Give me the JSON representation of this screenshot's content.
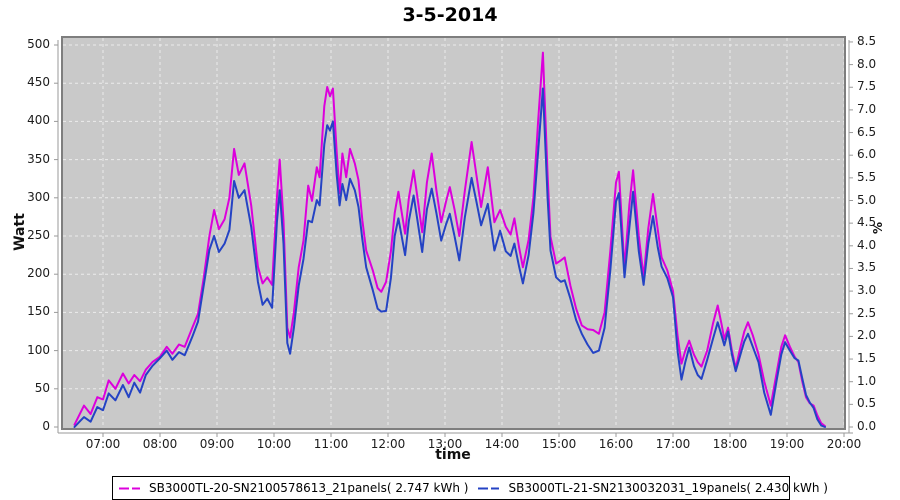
{
  "page": {
    "background": "#ffffff"
  },
  "chart_data": {
    "type": "line",
    "title": "3-5-2014",
    "xlabel": "time",
    "ylabel_left": "Watt",
    "ylabel_right": "%",
    "grid": true,
    "legend_position": "bottom",
    "plot_bg": "#c9c9c9",
    "grid_color": "#ececec",
    "frame_color": "#7e7e7e",
    "axis_color": "#9a9a9a",
    "xlim": [
      "06:17",
      "20:01"
    ],
    "ylim_left": [
      0,
      500
    ],
    "ylim_right": [
      0.0,
      8.5
    ],
    "x_ticks": [
      "07:00",
      "08:00",
      "09:00",
      "10:00",
      "11:00",
      "12:00",
      "13:00",
      "14:00",
      "15:00",
      "16:00",
      "17:00",
      "18:00",
      "19:00",
      "20:00"
    ],
    "y_left_ticks": [
      0,
      50,
      100,
      150,
      200,
      250,
      300,
      350,
      400,
      450,
      500
    ],
    "y_right_ticks": [
      "0.0",
      "0.5",
      "1.0",
      "1.5",
      "2.0",
      "2.5",
      "3.0",
      "3.5",
      "4.0",
      "4.5",
      "5.0",
      "5.5",
      "6.0",
      "6.5",
      "7.0",
      "7.5",
      "8.0",
      "8.5"
    ],
    "series": [
      {
        "name": "SB3000TL-20-SN2100578613_21panels( 2.747 kWh )",
        "color": "#dc00dc",
        "unit": "Watt",
        "energy_kwh": "2.747"
      },
      {
        "name": "SB3000TL-21-SN2130032031_19panels( 2.430 kWh )",
        "color": "#2443c4",
        "unit": "Watt",
        "energy_kwh": "2.430"
      }
    ],
    "points_format": [
      "time",
      "series1_watt",
      "series2_watt"
    ],
    "points": [
      [
        "06:30",
        3,
        0
      ],
      [
        "06:36",
        18,
        8
      ],
      [
        "06:40",
        28,
        13
      ],
      [
        "06:47",
        17,
        7
      ],
      [
        "06:54",
        39,
        26
      ],
      [
        "07:00",
        36,
        22
      ],
      [
        "07:06",
        61,
        44
      ],
      [
        "07:13",
        50,
        35
      ],
      [
        "07:21",
        70,
        55
      ],
      [
        "07:27",
        57,
        39
      ],
      [
        "07:33",
        68,
        58
      ],
      [
        "07:39",
        60,
        45
      ],
      [
        "07:45",
        75,
        68
      ],
      [
        "07:52",
        85,
        80
      ],
      [
        "08:00",
        92,
        90
      ],
      [
        "08:07",
        105,
        100
      ],
      [
        "08:13",
        96,
        88
      ],
      [
        "08:20",
        108,
        98
      ],
      [
        "08:26",
        105,
        94
      ],
      [
        "08:34",
        130,
        118
      ],
      [
        "08:40",
        148,
        138
      ],
      [
        "08:46",
        195,
        185
      ],
      [
        "08:52",
        250,
        232
      ],
      [
        "08:57",
        284,
        250
      ],
      [
        "09:02",
        259,
        229
      ],
      [
        "09:08",
        272,
        240
      ],
      [
        "09:13",
        300,
        258
      ],
      [
        "09:18",
        364,
        322
      ],
      [
        "09:23",
        330,
        300
      ],
      [
        "09:29",
        345,
        310
      ],
      [
        "09:36",
        290,
        262
      ],
      [
        "09:43",
        210,
        190
      ],
      [
        "09:48",
        188,
        160
      ],
      [
        "09:53",
        196,
        168
      ],
      [
        "09:58",
        186,
        156
      ],
      [
        "10:03",
        300,
        268
      ],
      [
        "10:06",
        350,
        310
      ],
      [
        "10:10",
        270,
        240
      ],
      [
        "10:14",
        130,
        110
      ],
      [
        "10:17",
        117,
        96
      ],
      [
        "10:21",
        150,
        130
      ],
      [
        "10:26",
        209,
        185
      ],
      [
        "10:31",
        244,
        220
      ],
      [
        "10:36",
        316,
        270
      ],
      [
        "10:40",
        296,
        268
      ],
      [
        "10:45",
        340,
        297
      ],
      [
        "10:48",
        327,
        290
      ],
      [
        "10:53",
        420,
        370
      ],
      [
        "10:56",
        445,
        395
      ],
      [
        "10:59",
        433,
        388
      ],
      [
        "11:02",
        443,
        400
      ],
      [
        "11:06",
        360,
        330
      ],
      [
        "11:09",
        306,
        290
      ],
      [
        "11:12",
        358,
        318
      ],
      [
        "11:16",
        327,
        297
      ],
      [
        "11:20",
        364,
        325
      ],
      [
        "11:25",
        345,
        310
      ],
      [
        "11:29",
        323,
        288
      ],
      [
        "11:33",
        270,
        245
      ],
      [
        "11:37",
        231,
        209
      ],
      [
        "11:44",
        205,
        179
      ],
      [
        "11:49",
        182,
        155
      ],
      [
        "11:53",
        177,
        151
      ],
      [
        "11:58",
        190,
        152
      ],
      [
        "12:03",
        230,
        195
      ],
      [
        "12:07",
        280,
        250
      ],
      [
        "12:11",
        308,
        273
      ],
      [
        "12:18",
        253,
        225
      ],
      [
        "12:22",
        300,
        270
      ],
      [
        "12:27",
        336,
        303
      ],
      [
        "12:31",
        300,
        270
      ],
      [
        "12:36",
        255,
        229
      ],
      [
        "12:41",
        320,
        285
      ],
      [
        "12:46",
        358,
        312
      ],
      [
        "12:51",
        310,
        280
      ],
      [
        "12:56",
        268,
        244
      ],
      [
        "13:01",
        295,
        265
      ],
      [
        "13:05",
        314,
        279
      ],
      [
        "13:10",
        285,
        250
      ],
      [
        "13:15",
        250,
        218
      ],
      [
        "13:21",
        310,
        275
      ],
      [
        "13:28",
        373,
        326
      ],
      [
        "13:33",
        330,
        295
      ],
      [
        "13:38",
        288,
        264
      ],
      [
        "13:45",
        340,
        292
      ],
      [
        "13:52",
        268,
        231
      ],
      [
        "13:58",
        284,
        257
      ],
      [
        "14:04",
        262,
        230
      ],
      [
        "14:09",
        252,
        224
      ],
      [
        "14:13",
        273,
        240
      ],
      [
        "14:18",
        235,
        210
      ],
      [
        "14:22",
        209,
        188
      ],
      [
        "14:28",
        245,
        225
      ],
      [
        "14:33",
        300,
        280
      ],
      [
        "14:38",
        400,
        360
      ],
      [
        "14:43",
        490,
        443
      ],
      [
        "14:48",
        330,
        300
      ],
      [
        "14:51",
        249,
        231
      ],
      [
        "14:57",
        214,
        196
      ],
      [
        "15:02",
        218,
        190
      ],
      [
        "15:06",
        222,
        192
      ],
      [
        "15:12",
        185,
        168
      ],
      [
        "15:18",
        155,
        140
      ],
      [
        "15:24",
        133,
        122
      ],
      [
        "15:30",
        128,
        108
      ],
      [
        "15:36",
        127,
        97
      ],
      [
        "15:42",
        122,
        100
      ],
      [
        "15:48",
        150,
        130
      ],
      [
        "15:54",
        230,
        205
      ],
      [
        "16:00",
        320,
        295
      ],
      [
        "16:03",
        334,
        306
      ],
      [
        "16:09",
        208,
        196
      ],
      [
        "16:14",
        290,
        260
      ],
      [
        "16:18",
        336,
        308
      ],
      [
        "16:24",
        250,
        230
      ],
      [
        "16:29",
        196,
        186
      ],
      [
        "16:34",
        260,
        240
      ],
      [
        "16:39",
        305,
        276
      ],
      [
        "16:44",
        258,
        235
      ],
      [
        "16:48",
        222,
        210
      ],
      [
        "16:54",
        205,
        195
      ],
      [
        "17:00",
        178,
        170
      ],
      [
        "17:05",
        118,
        98
      ],
      [
        "17:09",
        83,
        62
      ],
      [
        "17:13",
        100,
        85
      ],
      [
        "17:17",
        113,
        104
      ],
      [
        "17:22",
        95,
        80
      ],
      [
        "17:26",
        85,
        68
      ],
      [
        "17:30",
        79,
        63
      ],
      [
        "17:36",
        100,
        88
      ],
      [
        "17:42",
        135,
        115
      ],
      [
        "17:47",
        159,
        137
      ],
      [
        "17:51",
        135,
        120
      ],
      [
        "17:54",
        115,
        107
      ],
      [
        "17:58",
        130,
        125
      ],
      [
        "18:02",
        100,
        95
      ],
      [
        "18:06",
        77,
        73
      ],
      [
        "18:11",
        105,
        95
      ],
      [
        "18:15",
        125,
        112
      ],
      [
        "18:19",
        137,
        122
      ],
      [
        "18:24",
        120,
        105
      ],
      [
        "18:30",
        95,
        85
      ],
      [
        "18:36",
        60,
        45
      ],
      [
        "18:43",
        28,
        16
      ],
      [
        "18:49",
        70,
        60
      ],
      [
        "18:54",
        105,
        95
      ],
      [
        "18:58",
        120,
        111
      ],
      [
        "19:03",
        105,
        100
      ],
      [
        "19:08",
        92,
        90
      ],
      [
        "19:12",
        85,
        87
      ],
      [
        "19:16",
        60,
        64
      ],
      [
        "19:20",
        39,
        42
      ],
      [
        "19:24",
        31,
        32
      ],
      [
        "19:28",
        28,
        25
      ],
      [
        "19:32",
        15,
        10
      ],
      [
        "19:36",
        5,
        2
      ],
      [
        "19:40",
        1,
        0
      ]
    ]
  }
}
